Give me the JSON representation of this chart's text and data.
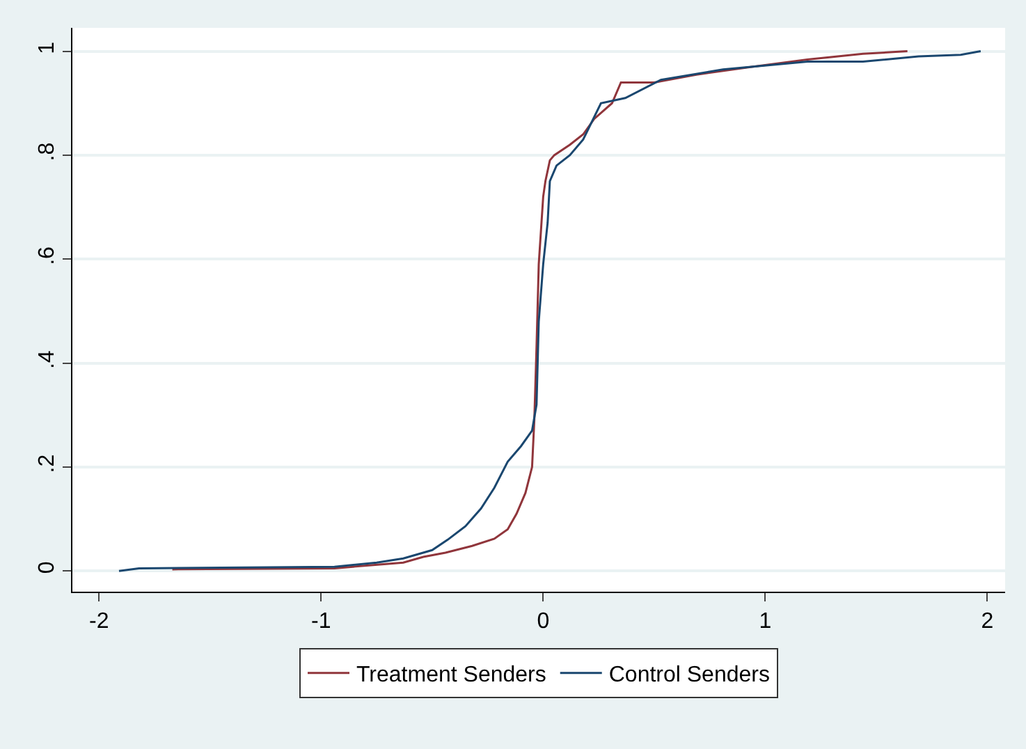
{
  "chart_data": {
    "type": "line",
    "xlim": [
      -2.12,
      2.08
    ],
    "ylim": [
      -0.04,
      1.045
    ],
    "xticks": [
      -2,
      -1,
      0,
      1,
      2
    ],
    "yticks": [
      0,
      {
        "value": 0.2,
        "label": ".2"
      },
      {
        "value": 0.4,
        "label": ".4"
      },
      {
        "value": 0.6,
        "label": ".6"
      },
      {
        "value": 0.8,
        "label": ".8"
      },
      1
    ],
    "grid": "y",
    "legend": "bottom",
    "series": [
      {
        "name": "Treatment Senders",
        "color": "#90353b",
        "x": [
          -1.67,
          -0.94,
          -0.63,
          -0.54,
          -0.44,
          -0.32,
          -0.22,
          -0.16,
          -0.12,
          -0.08,
          -0.05,
          -0.04,
          -0.03,
          -0.02,
          0.0,
          0.01,
          0.03,
          0.05,
          0.12,
          0.18,
          0.23,
          0.31,
          0.35,
          0.5,
          0.69,
          0.94,
          1.19,
          1.44,
          1.64
        ],
        "values": [
          0.003,
          0.005,
          0.016,
          0.027,
          0.035,
          0.048,
          0.062,
          0.08,
          0.11,
          0.15,
          0.2,
          0.29,
          0.43,
          0.59,
          0.72,
          0.75,
          0.79,
          0.8,
          0.82,
          0.84,
          0.87,
          0.9,
          0.94,
          0.94,
          0.955,
          0.97,
          0.984,
          0.995,
          1.0
        ]
      },
      {
        "name": "Control Senders",
        "color": "#1a476f",
        "x": [
          -1.91,
          -1.82,
          -0.94,
          -0.75,
          -0.63,
          -0.5,
          -0.43,
          -0.35,
          -0.28,
          -0.22,
          -0.16,
          -0.1,
          -0.05,
          -0.03,
          -0.02,
          0.0,
          0.02,
          0.03,
          0.06,
          0.12,
          0.18,
          0.26,
          0.37,
          0.53,
          0.81,
          1.19,
          1.44,
          1.69,
          1.88,
          1.97
        ],
        "values": [
          0.0,
          0.005,
          0.008,
          0.016,
          0.024,
          0.04,
          0.06,
          0.086,
          0.12,
          0.16,
          0.21,
          0.24,
          0.27,
          0.32,
          0.48,
          0.59,
          0.67,
          0.75,
          0.78,
          0.8,
          0.83,
          0.9,
          0.91,
          0.945,
          0.965,
          0.98,
          0.98,
          0.99,
          0.993,
          1.0
        ]
      }
    ]
  }
}
